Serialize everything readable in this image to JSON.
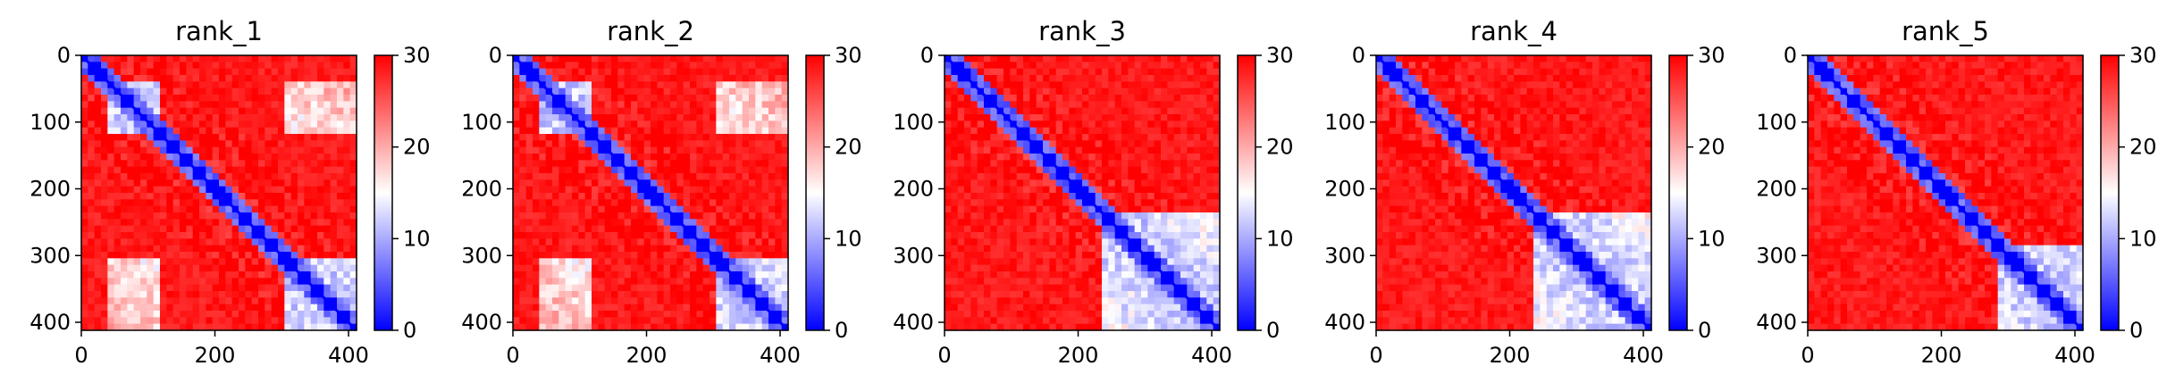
{
  "chart_data": [
    {
      "type": "heatmap",
      "title": "rank_1",
      "xticks": [
        "0",
        "200",
        "400"
      ],
      "yticks": [
        "0",
        "100",
        "200",
        "300",
        "400"
      ],
      "xlim": [
        0,
        412
      ],
      "ylim": [
        412,
        0
      ],
      "colorbar": {
        "ticks": [
          "0",
          "10",
          "20",
          "30"
        ],
        "range": [
          0,
          30
        ],
        "colormap": [
          "#0000ff",
          "#ffffff",
          "#ff0000"
        ]
      },
      "diagonal_value": 0,
      "near_diagonal_value": 4,
      "off_diagonal_value": 30,
      "blue_band_rows": [
        [
          40,
          120
        ],
        [
          300,
          412
        ]
      ]
    },
    {
      "type": "heatmap",
      "title": "rank_2",
      "xticks": [
        "0",
        "200",
        "400"
      ],
      "yticks": [
        "0",
        "100",
        "200",
        "300",
        "400"
      ],
      "xlim": [
        0,
        412
      ],
      "ylim": [
        412,
        0
      ],
      "colorbar": {
        "ticks": [
          "0",
          "10",
          "20",
          "30"
        ],
        "range": [
          0,
          30
        ],
        "colormap": [
          "#0000ff",
          "#ffffff",
          "#ff0000"
        ]
      },
      "diagonal_value": 0,
      "near_diagonal_value": 4,
      "off_diagonal_value": 30,
      "blue_band_rows": [
        [
          40,
          120
        ],
        [
          300,
          412
        ]
      ]
    },
    {
      "type": "heatmap",
      "title": "rank_3",
      "xticks": [
        "0",
        "200",
        "400"
      ],
      "yticks": [
        "0",
        "100",
        "200",
        "300",
        "400"
      ],
      "xlim": [
        0,
        412
      ],
      "ylim": [
        412,
        0
      ],
      "colorbar": {
        "ticks": [
          "0",
          "10",
          "20",
          "30"
        ],
        "range": [
          0,
          30
        ],
        "colormap": [
          "#0000ff",
          "#ffffff",
          "#ff0000"
        ]
      },
      "diagonal_value": 0,
      "near_diagonal_value": 4,
      "off_diagonal_value": 30,
      "blue_band_rows": [
        [
          240,
          412
        ]
      ]
    },
    {
      "type": "heatmap",
      "title": "rank_4",
      "xticks": [
        "0",
        "200",
        "400"
      ],
      "yticks": [
        "0",
        "100",
        "200",
        "300",
        "400"
      ],
      "xlim": [
        0,
        412
      ],
      "ylim": [
        412,
        0
      ],
      "colorbar": {
        "ticks": [
          "0",
          "10",
          "20",
          "30"
        ],
        "range": [
          0,
          30
        ],
        "colormap": [
          "#0000ff",
          "#ffffff",
          "#ff0000"
        ]
      },
      "diagonal_value": 0,
      "near_diagonal_value": 4,
      "off_diagonal_value": 30,
      "blue_band_rows": [
        [
          240,
          412
        ]
      ]
    },
    {
      "type": "heatmap",
      "title": "rank_5",
      "xticks": [
        "0",
        "200",
        "400"
      ],
      "yticks": [
        "0",
        "100",
        "200",
        "300",
        "400"
      ],
      "xlim": [
        0,
        412
      ],
      "ylim": [
        412,
        0
      ],
      "colorbar": {
        "ticks": [
          "0",
          "10",
          "20",
          "30"
        ],
        "range": [
          0,
          30
        ],
        "colormap": [
          "#0000ff",
          "#ffffff",
          "#ff0000"
        ]
      },
      "diagonal_value": 0,
      "near_diagonal_value": 4,
      "off_diagonal_value": 30,
      "blue_band_rows": [
        [
          280,
          412
        ]
      ]
    }
  ]
}
